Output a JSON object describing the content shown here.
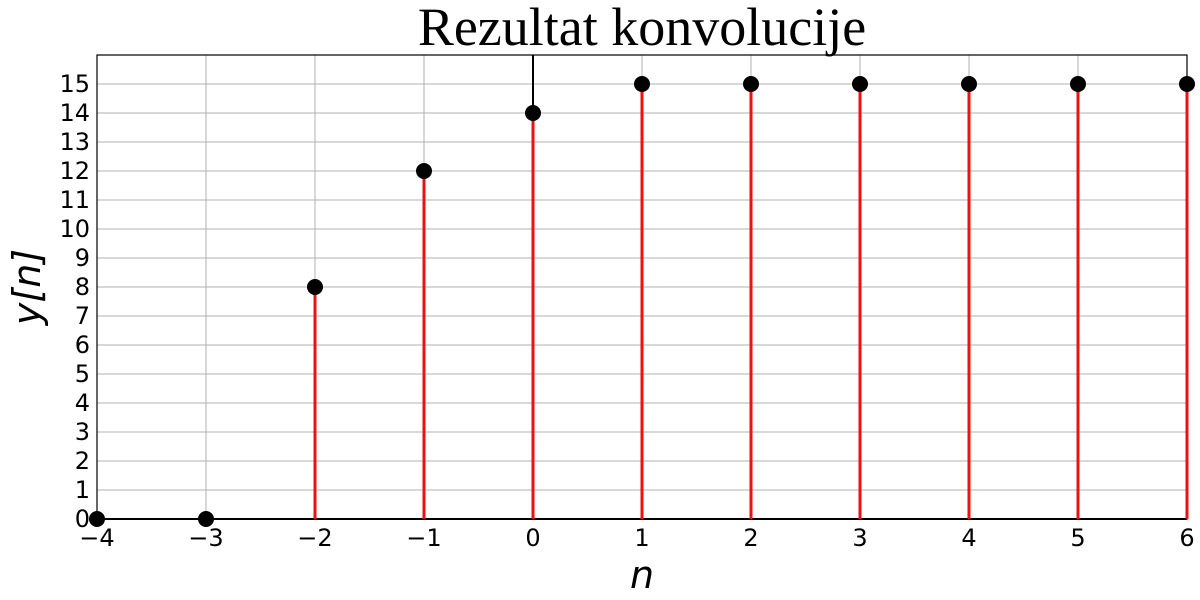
{
  "chart_data": {
    "type": "stem",
    "title": "Rezultat konvolucije",
    "xlabel": "n",
    "ylabel": "y[n]",
    "xlim": [
      -4,
      6
    ],
    "ylim": [
      0,
      16
    ],
    "x": [
      -4,
      -3,
      -2,
      -1,
      0,
      1,
      2,
      3,
      4,
      5,
      6
    ],
    "values": [
      0,
      0,
      8,
      12,
      14,
      15,
      15,
      15,
      15,
      15,
      15
    ],
    "x_tick_labels": [
      "−4",
      "−3",
      "−2",
      "−1",
      "0",
      "1",
      "2",
      "3",
      "4",
      "5",
      "6"
    ],
    "y_ticks": [
      0,
      1,
      2,
      3,
      4,
      5,
      6,
      7,
      8,
      9,
      10,
      11,
      12,
      13,
      14,
      15
    ],
    "grid": true,
    "colors": {
      "stem": "#ee1111",
      "marker": "#000000",
      "zero_line": "#000000",
      "grid": "#b0b0b0"
    }
  }
}
